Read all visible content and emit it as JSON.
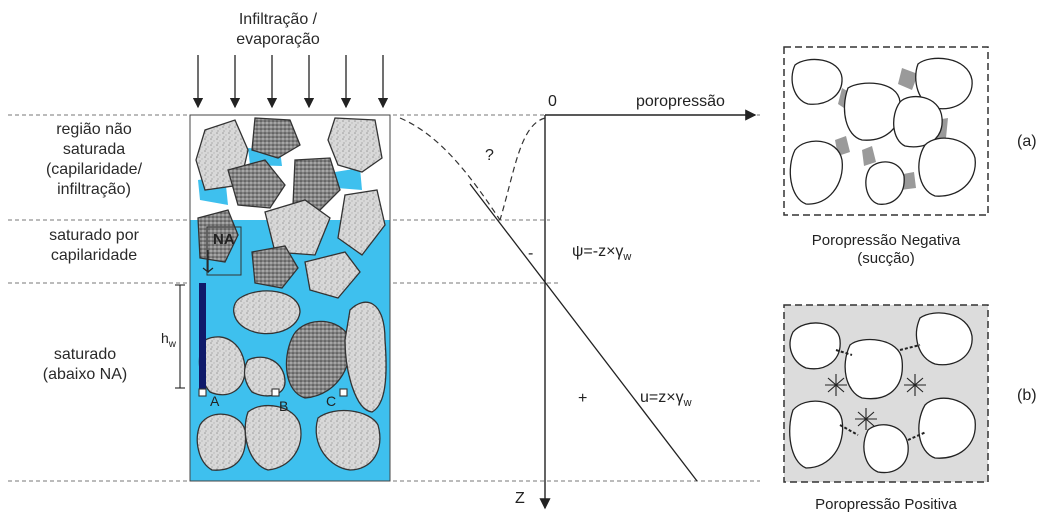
{
  "top_label": [
    "Infiltração /",
    "evaporação"
  ],
  "zones": {
    "unsaturated": [
      "região não",
      "saturada",
      "(capilaridade/",
      "infiltração)"
    ],
    "capillary": [
      "saturado por",
      "capilaridade"
    ],
    "saturated": [
      "saturado",
      "(abaixo NA)"
    ]
  },
  "column": {
    "na_label": "NA",
    "hw_label": "h",
    "hw_sub": "w",
    "points": [
      "A",
      "B",
      "C"
    ],
    "water_color": "#3ec0ee"
  },
  "graph": {
    "origin_label": "0",
    "x_axis_label": "poropressão",
    "z_axis_label": "Z",
    "question_mark": "?",
    "minus_sign": "-",
    "plus_sign": "+",
    "psi_eq": "ψ=-z×γ",
    "u_eq": "u=z×γ",
    "gamma_sub": "w"
  },
  "insets": {
    "a": {
      "tag": "(a)",
      "caption": [
        "Poropressão Negativa",
        "(sucção)"
      ]
    },
    "b": {
      "tag": "(b)",
      "caption": [
        "Poropressão Positiva"
      ]
    }
  }
}
